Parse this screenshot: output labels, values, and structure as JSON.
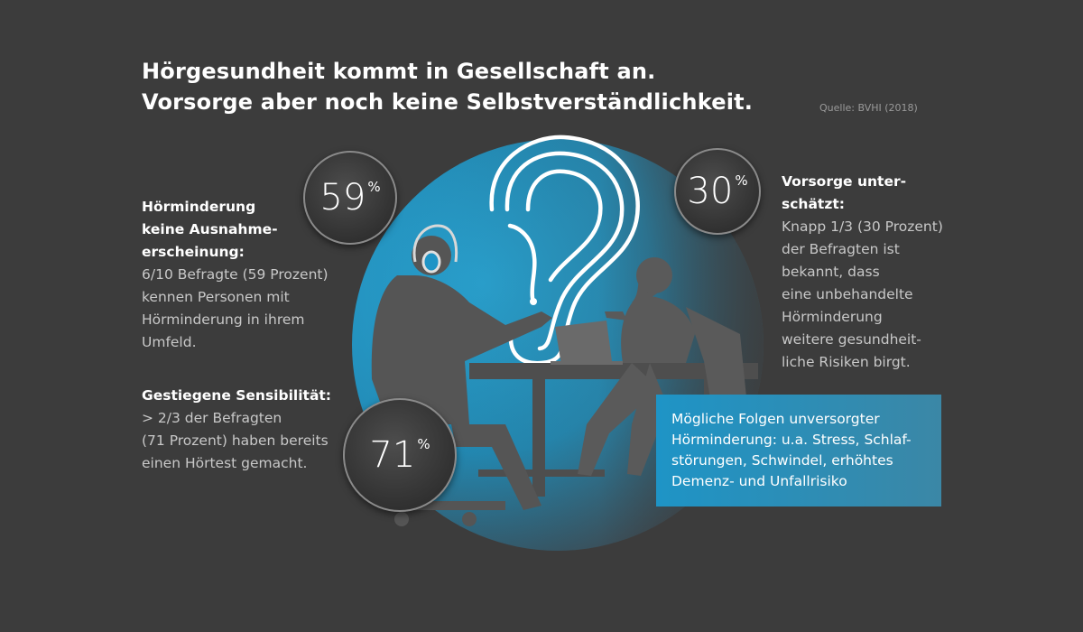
{
  "header": {
    "title_line1": "Hörgesundheit kommt in Gesellschaft an.",
    "title_line2": "Vorsorge aber noch keine Selbstverständlichkeit.",
    "source": "Quelle: BVHI (2018)"
  },
  "stats": [
    {
      "value": "59",
      "unit": "%"
    },
    {
      "value": "30",
      "unit": "%"
    },
    {
      "value": "71",
      "unit": "%"
    }
  ],
  "left_block_1": {
    "heading": [
      "Hörminderung",
      "keine Ausnahme-",
      "erscheinung:"
    ],
    "body": [
      "6/10 Befragte (59 Prozent)",
      "kennen Personen mit",
      "Hörminderung in ihrem",
      "Umfeld."
    ]
  },
  "left_block_2": {
    "heading": [
      "Gestiegene Sensibilität:"
    ],
    "body": [
      "> 2/3 der Befragten",
      "(71 Prozent) haben bereits",
      "einen Hörtest gemacht."
    ]
  },
  "right_block": {
    "heading": [
      "Vorsorge unter-",
      "schätzt:"
    ],
    "body": [
      "Knapp 1/3 (30 Prozent)",
      "der Befragten ist",
      "bekannt, dass",
      "eine unbehandelte",
      "Hörminderung",
      "weitere gesundheit-",
      "liche Risiken birgt."
    ]
  },
  "info_box": {
    "lines": [
      "Mögliche Folgen unversorgter",
      "Hörminderung: u.a. Stress, Schlaf-",
      "störungen, Schwindel, erhöhtes",
      "Demenz- und Unfallrisiko"
    ]
  },
  "colors": {
    "background": "#3c3c3c",
    "accent_blue": "#1e94c6",
    "circle_blue": "#2aa6d6"
  }
}
